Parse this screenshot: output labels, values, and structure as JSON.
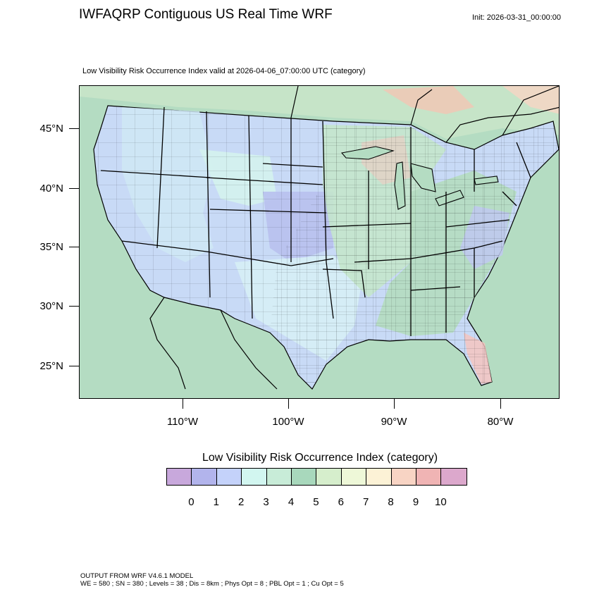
{
  "header": {
    "title": "IWFAQRP Contiguous US Real Time WRF",
    "init": "Init: 2026-03-31_00:00:00",
    "subtitle": "Low Visibility Risk Occurrence Index valid at 2026-04-06_07:00:00 UTC   (category)"
  },
  "map": {
    "lat_labels": [
      "45°N",
      "40°N",
      "35°N",
      "30°N",
      "25°N"
    ],
    "lon_labels": [
      "110°W",
      "100°W",
      "90°W",
      "80°W"
    ],
    "regions": [
      {
        "name": "west-light-blue",
        "category": 2
      },
      {
        "name": "mountain-light-cyan",
        "category": 3
      },
      {
        "name": "central-plains-blue",
        "category": 1
      },
      {
        "name": "midwest-green",
        "category": 5
      },
      {
        "name": "great-lakes-pink",
        "category": 9
      },
      {
        "name": "east-green",
        "category": 5
      },
      {
        "name": "ocean-green",
        "category": 4
      },
      {
        "name": "canada-orange",
        "category": 8
      }
    ]
  },
  "legend": {
    "title": "Low Visibility Risk Occurrence Index  (category)",
    "colors": [
      "#c8a8dc",
      "#b2b4ec",
      "#c4d2fa",
      "#d2f6f0",
      "#c8ecd8",
      "#a8d8bc",
      "#d6eecc",
      "#eef8d8",
      "#fcf2d6",
      "#f8d4c4",
      "#f0b4b4",
      "#dca8cc"
    ],
    "tick_labels": [
      "0",
      "1",
      "2",
      "3",
      "4",
      "5",
      "6",
      "7",
      "8",
      "9",
      "10"
    ]
  },
  "footer": {
    "line1": "OUTPUT FROM WRF V4.6.1 MODEL",
    "line2": "WE = 580 ; SN = 380 ; Levels = 38 ; Dis = 8km ; Phys Opt = 8 ; PBL Opt = 1 ; Cu Opt = 5"
  }
}
